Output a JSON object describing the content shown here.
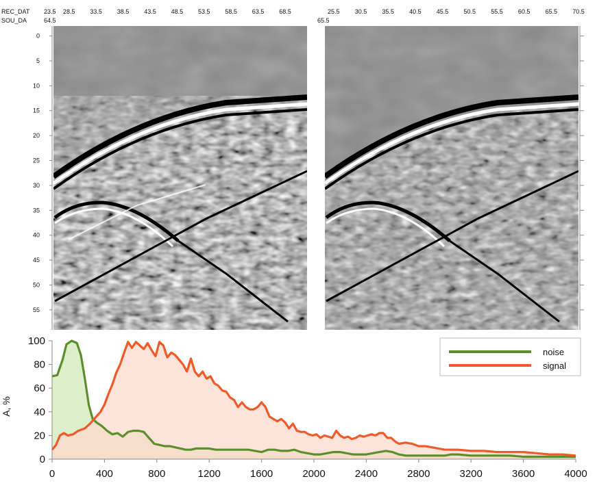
{
  "chart_data": [
    {
      "type": "heatmap",
      "header": {
        "rec_label": "REC_DAT",
        "sou_label": "SOU_DA",
        "left_sou_value": "64.5",
        "right_sou_value": "65.5",
        "left_rec_ticks": [
          "23.5",
          "28.5",
          "33.5",
          "38.5",
          "43.5",
          "48.5",
          "53.5",
          "58.5",
          "63.5",
          "68.5"
        ],
        "right_rec_ticks": [
          "25.5",
          "30.5",
          "35.5",
          "40.5",
          "45.5",
          "50.5",
          "55.5",
          "60.5",
          "65.5",
          "70.5"
        ]
      },
      "y_ticks": [
        "0",
        "5",
        "10",
        "15",
        "20",
        "25",
        "30",
        "35",
        "40",
        "45",
        "50",
        "55"
      ],
      "ylim": [
        -2,
        59
      ],
      "panels": 2,
      "colors": {
        "gray": "#8a8a8a",
        "black": "#000000",
        "white": "#ffffff"
      }
    },
    {
      "type": "area",
      "ylabel": "A, %",
      "xlabel": "",
      "xlim": [
        0,
        4000
      ],
      "ylim": [
        0,
        100
      ],
      "x_ticks": [
        0,
        400,
        800,
        1200,
        1600,
        2000,
        2400,
        2800,
        3200,
        3600,
        4000
      ],
      "y_ticks": [
        0,
        20,
        40,
        60,
        80,
        100
      ],
      "legend_position": "top-right",
      "series": [
        {
          "name": "noise",
          "color": "#5a8f2a",
          "fill": "#d4e8b8",
          "points": [
            [
              0,
              70
            ],
            [
              40,
              71
            ],
            [
              80,
              84
            ],
            [
              110,
              97
            ],
            [
              150,
              100
            ],
            [
              190,
              98
            ],
            [
              220,
              88
            ],
            [
              250,
              68
            ],
            [
              280,
              46
            ],
            [
              310,
              34
            ],
            [
              340,
              31
            ],
            [
              380,
              28
            ],
            [
              420,
              24
            ],
            [
              460,
              21
            ],
            [
              500,
              22
            ],
            [
              540,
              19
            ],
            [
              580,
              23
            ],
            [
              620,
              24
            ],
            [
              660,
              24
            ],
            [
              700,
              23
            ],
            [
              740,
              18
            ],
            [
              780,
              13
            ],
            [
              820,
              12
            ],
            [
              860,
              11
            ],
            [
              900,
              11
            ],
            [
              940,
              10
            ],
            [
              980,
              9
            ],
            [
              1020,
              8
            ],
            [
              1060,
              8
            ],
            [
              1100,
              9
            ],
            [
              1150,
              9
            ],
            [
              1200,
              9
            ],
            [
              1250,
              8
            ],
            [
              1300,
              8
            ],
            [
              1400,
              8
            ],
            [
              1500,
              8
            ],
            [
              1550,
              7
            ],
            [
              1600,
              6
            ],
            [
              1650,
              8
            ],
            [
              1700,
              8
            ],
            [
              1750,
              7
            ],
            [
              1800,
              7
            ],
            [
              1850,
              8
            ],
            [
              1900,
              6
            ],
            [
              1950,
              5
            ],
            [
              2000,
              4
            ],
            [
              2050,
              4
            ],
            [
              2100,
              5
            ],
            [
              2150,
              6
            ],
            [
              2200,
              6
            ],
            [
              2250,
              5
            ],
            [
              2300,
              4
            ],
            [
              2400,
              4
            ],
            [
              2450,
              5
            ],
            [
              2500,
              6
            ],
            [
              2550,
              7
            ],
            [
              2600,
              6
            ],
            [
              2650,
              4
            ],
            [
              2700,
              3
            ],
            [
              2800,
              3
            ],
            [
              2900,
              3
            ],
            [
              3000,
              3
            ],
            [
              3050,
              4
            ],
            [
              3100,
              4
            ],
            [
              3200,
              3
            ],
            [
              3300,
              3
            ],
            [
              3400,
              3
            ],
            [
              3500,
              3
            ],
            [
              3600,
              2
            ],
            [
              3700,
              2
            ],
            [
              3800,
              2
            ],
            [
              3900,
              2
            ],
            [
              4000,
              2
            ]
          ]
        },
        {
          "name": "signal",
          "color": "#f05a28",
          "fill": "#fcd9cc",
          "points": [
            [
              0,
              8
            ],
            [
              30,
              12
            ],
            [
              60,
              20
            ],
            [
              90,
              22
            ],
            [
              120,
              20
            ],
            [
              160,
              21
            ],
            [
              200,
              24
            ],
            [
              250,
              26
            ],
            [
              290,
              30
            ],
            [
              330,
              35
            ],
            [
              370,
              40
            ],
            [
              400,
              46
            ],
            [
              430,
              55
            ],
            [
              460,
              63
            ],
            [
              490,
              73
            ],
            [
              520,
              80
            ],
            [
              550,
              90
            ],
            [
              580,
              99
            ],
            [
              610,
              94
            ],
            [
              640,
              99
            ],
            [
              670,
              96
            ],
            [
              700,
              93
            ],
            [
              730,
              98
            ],
            [
              760,
              92
            ],
            [
              790,
              87
            ],
            [
              820,
              99
            ],
            [
              850,
              96
            ],
            [
              880,
              86
            ],
            [
              910,
              90
            ],
            [
              940,
              88
            ],
            [
              970,
              84
            ],
            [
              1000,
              80
            ],
            [
              1030,
              74
            ],
            [
              1060,
              85
            ],
            [
              1090,
              74
            ],
            [
              1120,
              70
            ],
            [
              1150,
              74
            ],
            [
              1180,
              68
            ],
            [
              1210,
              70
            ],
            [
              1240,
              64
            ],
            [
              1270,
              62
            ],
            [
              1300,
              58
            ],
            [
              1330,
              57
            ],
            [
              1360,
              52
            ],
            [
              1390,
              50
            ],
            [
              1420,
              44
            ],
            [
              1450,
              48
            ],
            [
              1480,
              44
            ],
            [
              1510,
              42
            ],
            [
              1540,
              42
            ],
            [
              1570,
              44
            ],
            [
              1600,
              48
            ],
            [
              1630,
              44
            ],
            [
              1660,
              36
            ],
            [
              1690,
              34
            ],
            [
              1720,
              32
            ],
            [
              1750,
              34
            ],
            [
              1780,
              31
            ],
            [
              1810,
              26
            ],
            [
              1840,
              30
            ],
            [
              1870,
              24
            ],
            [
              1900,
              23
            ],
            [
              1930,
              23
            ],
            [
              1960,
              21
            ],
            [
              1990,
              20
            ],
            [
              2020,
              21
            ],
            [
              2050,
              18
            ],
            [
              2080,
              20
            ],
            [
              2110,
              19
            ],
            [
              2140,
              18
            ],
            [
              2170,
              24
            ],
            [
              2200,
              20
            ],
            [
              2230,
              18
            ],
            [
              2260,
              19
            ],
            [
              2290,
              17
            ],
            [
              2320,
              18
            ],
            [
              2350,
              20
            ],
            [
              2380,
              19
            ],
            [
              2410,
              20
            ],
            [
              2440,
              21
            ],
            [
              2470,
              20
            ],
            [
              2500,
              22
            ],
            [
              2530,
              22
            ],
            [
              2560,
              18
            ],
            [
              2590,
              18
            ],
            [
              2620,
              15
            ],
            [
              2650,
              13
            ],
            [
              2700,
              14
            ],
            [
              2750,
              13
            ],
            [
              2800,
              11
            ],
            [
              2850,
              11
            ],
            [
              2900,
              10
            ],
            [
              2950,
              9
            ],
            [
              3000,
              8
            ],
            [
              3050,
              8
            ],
            [
              3100,
              8
            ],
            [
              3200,
              7
            ],
            [
              3300,
              7
            ],
            [
              3400,
              6
            ],
            [
              3500,
              6
            ],
            [
              3600,
              6
            ],
            [
              3700,
              5
            ],
            [
              3800,
              4
            ],
            [
              3900,
              4
            ],
            [
              4000,
              3
            ]
          ]
        }
      ]
    }
  ]
}
